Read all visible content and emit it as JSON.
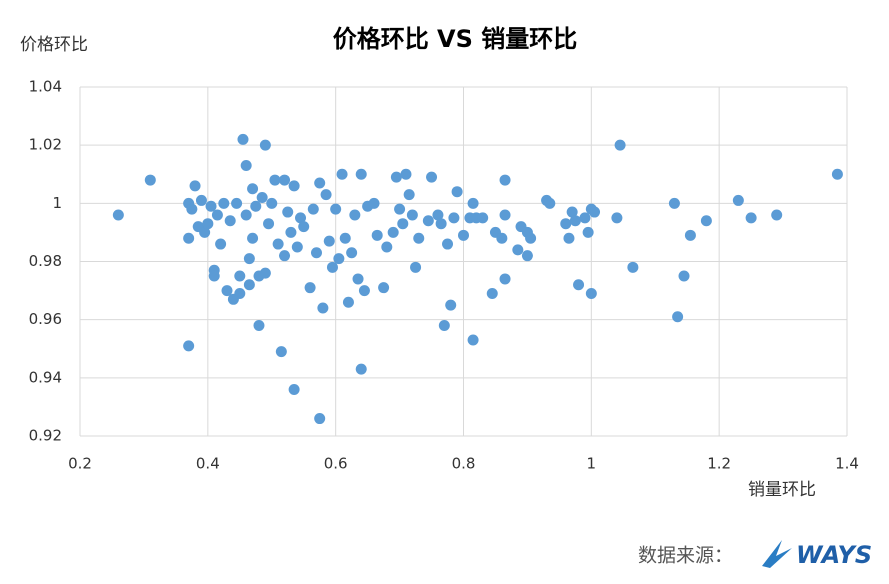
{
  "chart_data": {
    "type": "scatter",
    "title": "价格环比 VS 销量环比",
    "y_label": "价格环比",
    "x_label": "销量环比",
    "source": "数据来源：",
    "logo": "WAYS",
    "color": "#5b9bd5",
    "grid": true,
    "xlim": [
      0.2,
      1.4
    ],
    "xticks": [
      0.2,
      0.4,
      0.6,
      0.8,
      1,
      1.2,
      1.4
    ],
    "ylim": [
      0.92,
      1.04
    ],
    "yticks": [
      0.92,
      0.94,
      0.96,
      0.98,
      1,
      1.02,
      1.04
    ],
    "x": [
      0.26,
      0.31,
      0.37,
      0.375,
      0.37,
      0.37,
      0.38,
      0.385,
      0.39,
      0.395,
      0.4,
      0.405,
      0.41,
      0.41,
      0.415,
      0.42,
      0.425,
      0.43,
      0.435,
      0.44,
      0.445,
      0.45,
      0.45,
      0.455,
      0.46,
      0.46,
      0.465,
      0.465,
      0.47,
      0.47,
      0.475,
      0.48,
      0.48,
      0.485,
      0.49,
      0.49,
      0.495,
      0.5,
      0.505,
      0.51,
      0.515,
      0.52,
      0.52,
      0.525,
      0.53,
      0.535,
      0.535,
      0.54,
      0.545,
      0.55,
      0.56,
      0.565,
      0.57,
      0.575,
      0.575,
      0.58,
      0.585,
      0.59,
      0.595,
      0.6,
      0.605,
      0.61,
      0.615,
      0.62,
      0.625,
      0.63,
      0.635,
      0.64,
      0.64,
      0.645,
      0.65,
      0.66,
      0.665,
      0.675,
      0.68,
      0.69,
      0.695,
      0.7,
      0.705,
      0.71,
      0.715,
      0.72,
      0.725,
      0.73,
      0.745,
      0.75,
      0.76,
      0.765,
      0.77,
      0.775,
      0.78,
      0.785,
      0.79,
      0.8,
      0.81,
      0.815,
      0.815,
      0.82,
      0.83,
      0.845,
      0.85,
      0.86,
      0.865,
      0.865,
      0.865,
      0.885,
      0.89,
      0.9,
      0.9,
      0.905,
      0.93,
      0.935,
      0.96,
      0.965,
      0.97,
      0.975,
      0.98,
      0.99,
      0.995,
      1.0,
      1.0,
      1.005,
      1.04,
      1.045,
      1.065,
      1.13,
      1.135,
      1.145,
      1.155,
      1.18,
      1.23,
      1.25,
      1.29,
      1.385
    ],
    "values": [
      0.996,
      1.008,
      1.0,
      0.998,
      0.951,
      0.988,
      1.006,
      0.992,
      1.001,
      0.99,
      0.993,
      0.999,
      0.977,
      0.975,
      0.996,
      0.986,
      1.0,
      0.97,
      0.994,
      0.967,
      1.0,
      0.975,
      0.969,
      1.022,
      1.013,
      0.996,
      0.981,
      0.972,
      1.005,
      0.988,
      0.999,
      0.958,
      0.975,
      1.002,
      1.02,
      0.976,
      0.993,
      1.0,
      1.008,
      0.986,
      0.949,
      1.008,
      0.982,
      0.997,
      0.99,
      1.006,
      0.936,
      0.985,
      0.995,
      0.992,
      0.971,
      0.998,
      0.983,
      0.926,
      1.007,
      0.964,
      1.003,
      0.987,
      0.978,
      0.998,
      0.981,
      1.01,
      0.988,
      0.966,
      0.983,
      0.996,
      0.974,
      0.943,
      1.01,
      0.97,
      0.999,
      1.0,
      0.989,
      0.971,
      0.985,
      0.99,
      1.009,
      0.998,
      0.993,
      1.01,
      1.003,
      0.996,
      0.978,
      0.988,
      0.994,
      1.009,
      0.996,
      0.993,
      0.958,
      0.986,
      0.965,
      0.995,
      1.004,
      0.989,
      0.995,
      1.0,
      0.953,
      0.995,
      0.995,
      0.969,
      0.99,
      0.988,
      1.008,
      0.996,
      0.974,
      0.984,
      0.992,
      0.982,
      0.99,
      0.988,
      1.001,
      1.0,
      0.993,
      0.988,
      0.997,
      0.994,
      0.972,
      0.995,
      0.99,
      0.969,
      0.998,
      0.997,
      0.995,
      1.02,
      0.978,
      1.0,
      0.961,
      0.975,
      0.989,
      0.994,
      1.001,
      0.995,
      0.996,
      1.01
    ]
  }
}
